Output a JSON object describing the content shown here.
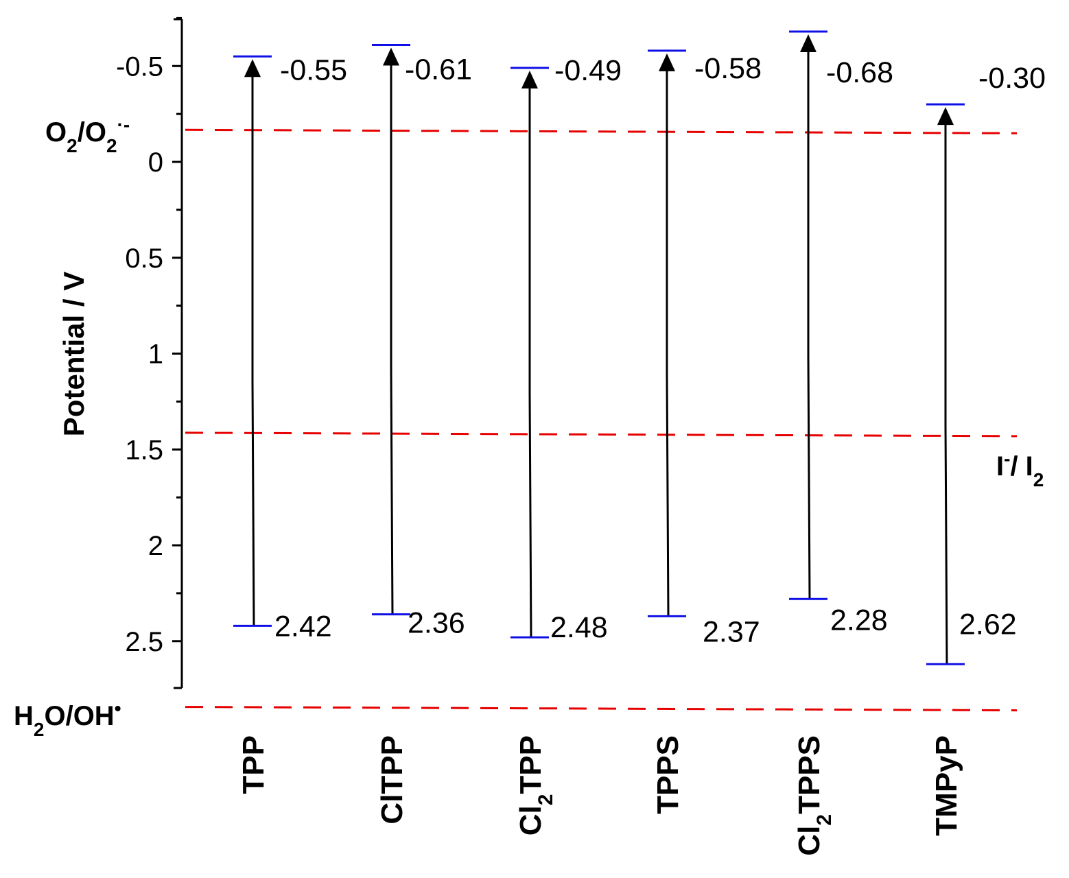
{
  "chart_data": {
    "type": "diagram",
    "ylabel": "Potential / V",
    "ylim": [
      -0.75,
      2.65
    ],
    "y_axis_inverted": true,
    "yticks": [
      "-0.5",
      "0",
      "0.5",
      "1",
      "1.5",
      "2",
      "2.5"
    ],
    "ytick_values": [
      -0.5,
      0,
      0.5,
      1,
      1.5,
      2,
      2.5
    ],
    "categories": [
      {
        "id": "TPP",
        "main": "TPP",
        "sub": "",
        "rest": ""
      },
      {
        "id": "ClTPP",
        "main": "ClTPP",
        "sub": "",
        "rest": ""
      },
      {
        "id": "Cl2TPP",
        "main": "Cl",
        "sub": "2",
        "rest": "TPP"
      },
      {
        "id": "TPPS",
        "main": "TPPS",
        "sub": "",
        "rest": ""
      },
      {
        "id": "Cl2TPPS",
        "main": "Cl",
        "sub": "2",
        "rest": "TPPS"
      },
      {
        "id": "TMPyP",
        "main": "TMPyP",
        "sub": "",
        "rest": ""
      }
    ],
    "series": [
      {
        "name": "",
        "top": [
          -0.55,
          -0.61,
          -0.49,
          -0.58,
          -0.68,
          -0.3
        ],
        "bottom": [
          2.42,
          2.36,
          2.48,
          2.37,
          2.28,
          2.62
        ],
        "top_labels": [
          "-0.55",
          "-0.61",
          "-0.49",
          "-0.58",
          "-0.68",
          "-0.30"
        ],
        "bottom_labels": [
          "2.42",
          "2.36",
          "2.48",
          "2.37",
          "2.28",
          "2.62"
        ]
      }
    ],
    "reference_lines": [
      {
        "id": "o2",
        "value": -0.16,
        "text_a": "O",
        "sub_a": "2",
        "text_b": "/O",
        "sub_b": "2",
        "sup_b": "·-",
        "position": "left"
      },
      {
        "id": "iodide",
        "value": 1.42,
        "text_a": "I",
        "sup_a": "-",
        "text_b": "/ I",
        "sub_b": "2",
        "position": "right"
      },
      {
        "id": "water",
        "value": 2.85,
        "text_a": "H",
        "sub_a": "2",
        "text_b": "O/OH",
        "sup_b": "•",
        "position": "left"
      }
    ],
    "colors": {
      "level": "#1010e6",
      "arrow": "#000000",
      "reference": "#e60000"
    }
  }
}
